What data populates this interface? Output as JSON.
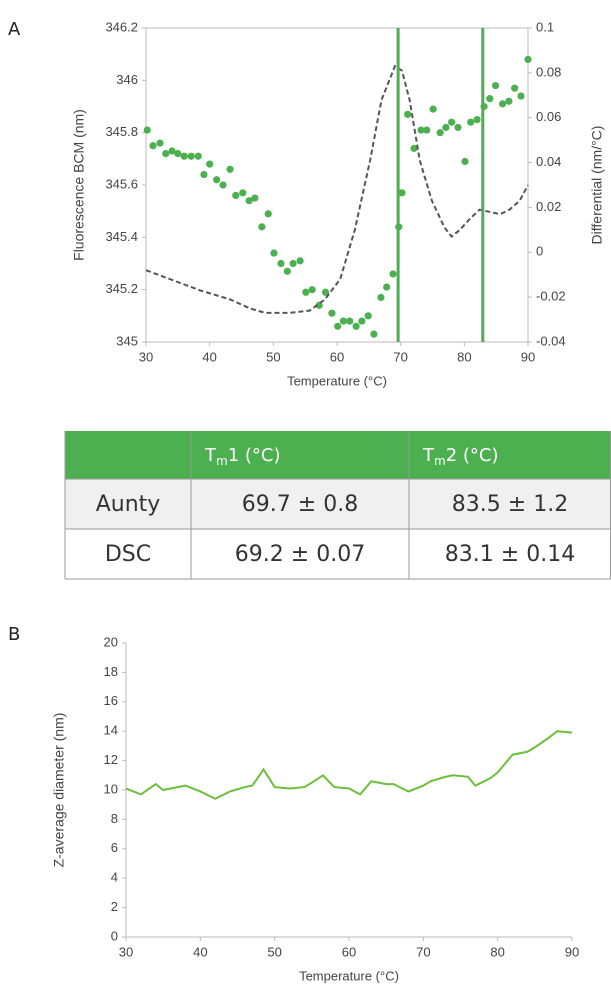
{
  "panel_labels": [
    "A",
    "B"
  ],
  "chart_data": [
    {
      "type": "scatter",
      "xlabel": "Temperature (°C)",
      "ylabel": "Fluorescence BCM (nm)",
      "y2label": "Differential (nm/°C)",
      "xlim": [
        30,
        90
      ],
      "xticks": [
        30,
        40,
        50,
        60,
        70,
        80,
        90
      ],
      "ylim": [
        345,
        346.2
      ],
      "yticks": [
        345,
        345.2,
        345.4,
        345.6,
        345.8,
        346,
        346.2
      ],
      "y2lim": [
        -0.04,
        0.1
      ],
      "y2ticks": [
        -0.04,
        -0.02,
        0,
        0.02,
        0.04,
        0.06,
        0.08,
        0.1
      ],
      "series": [
        {
          "type": "scatter",
          "color": "#4caf50",
          "x": [
            30.2,
            31.1,
            32.2,
            33.1,
            34.1,
            35.0,
            36.0,
            37.1,
            38.2,
            39.1,
            40.0,
            41.1,
            42.1,
            43.2,
            44.1,
            45.2,
            46.2,
            47.1,
            48.2,
            49.2,
            50.1,
            51.2,
            52.2,
            53.1,
            54.2,
            55.1,
            56.1,
            57.2,
            58.2,
            59.2,
            60.1,
            61.0,
            62.0,
            63.0,
            63.9,
            64.9,
            65.8,
            66.9,
            67.8,
            68.8,
            69.7,
            70.2,
            71.1,
            72.1,
            73.2,
            74.1,
            75.1,
            76.2,
            77.1,
            78.0,
            79.0,
            80.1,
            81.0,
            82.0,
            83.1,
            84.0,
            84.9,
            86.0,
            87.0,
            87.9,
            88.9,
            90.0
          ],
          "values": [
            345.81,
            345.75,
            345.76,
            345.72,
            345.73,
            345.72,
            345.71,
            345.71,
            345.71,
            345.64,
            345.68,
            345.62,
            345.6,
            345.66,
            345.56,
            345.57,
            345.54,
            345.55,
            345.44,
            345.49,
            345.34,
            345.3,
            345.27,
            345.3,
            345.31,
            345.19,
            345.2,
            345.14,
            345.19,
            345.11,
            345.06,
            345.08,
            345.08,
            345.06,
            345.08,
            345.1,
            345.03,
            345.17,
            345.21,
            345.26,
            345.44,
            345.57,
            345.87,
            345.74,
            345.81,
            345.81,
            345.89,
            345.8,
            345.82,
            345.84,
            345.82,
            345.69,
            345.84,
            345.85,
            345.9,
            345.93,
            345.98,
            345.91,
            345.92,
            345.97,
            345.94,
            346.08
          ]
        },
        {
          "type": "line",
          "axis": "y2",
          "color": "#555555",
          "dashed": true,
          "x": [
            30,
            33.8,
            38.5,
            43.2,
            46.3,
            48.7,
            52.6,
            55.7,
            58.1,
            60.5,
            62.8,
            65.2,
            67.0,
            69.1,
            70.2,
            71.4,
            73.0,
            74.9,
            76.9,
            78.0,
            79.3,
            80.9,
            82.4,
            84.0,
            85.6,
            87.1,
            88.7,
            90
          ],
          "values": [
            -0.008,
            -0.012,
            -0.017,
            -0.021,
            -0.025,
            -0.027,
            -0.027,
            -0.026,
            -0.021,
            -0.012,
            0.01,
            0.041,
            0.068,
            0.083,
            0.081,
            0.068,
            0.041,
            0.023,
            0.011,
            0.007,
            0.01,
            0.015,
            0.019,
            0.018,
            0.017,
            0.019,
            0.023,
            0.03
          ]
        }
      ],
      "vlines": {
        "color": "#4caf50",
        "x": [
          69.6,
          82.9
        ]
      }
    },
    {
      "type": "line",
      "xlabel": "Temperature (°C)",
      "ylabel": "Z-average diameter (nm)",
      "xlim": [
        30,
        90
      ],
      "xticks": [
        30,
        40,
        50,
        60,
        70,
        80,
        90
      ],
      "ylim": [
        0,
        20
      ],
      "yticks": [
        0,
        2,
        4,
        6,
        8,
        10,
        12,
        14,
        16,
        18,
        20
      ],
      "series": [
        {
          "type": "line",
          "color": "#6cbf3c",
          "x": [
            30,
            32,
            34,
            35,
            36,
            38,
            40,
            42,
            44,
            46,
            47,
            48.5,
            50,
            52,
            54,
            55,
            56.5,
            58,
            60,
            61.5,
            63,
            65,
            66,
            68,
            70,
            71,
            73,
            74,
            76,
            77,
            79,
            80,
            82,
            84,
            85,
            87,
            88,
            90
          ],
          "values": [
            10.1,
            9.7,
            10.4,
            10.0,
            10.1,
            10.3,
            9.9,
            9.4,
            9.9,
            10.2,
            10.3,
            11.4,
            10.2,
            10.1,
            10.2,
            10.5,
            11.0,
            10.2,
            10.1,
            9.7,
            10.6,
            10.4,
            10.4,
            9.9,
            10.3,
            10.6,
            10.9,
            11.0,
            10.9,
            10.3,
            10.8,
            11.2,
            12.4,
            12.6,
            12.9,
            13.6,
            14.0,
            13.9
          ]
        }
      ]
    }
  ],
  "table": {
    "header": [
      [
        "T",
        "m",
        "1 (°C)"
      ],
      [
        "T",
        "m",
        "2 (°C)"
      ]
    ],
    "rows": [
      [
        "Aunty",
        "69.7 ± 0.8",
        "83.5 ± 1.2"
      ],
      [
        "DSC",
        "69.2 ± 0.07",
        "83.1 ± 0.14"
      ]
    ]
  }
}
